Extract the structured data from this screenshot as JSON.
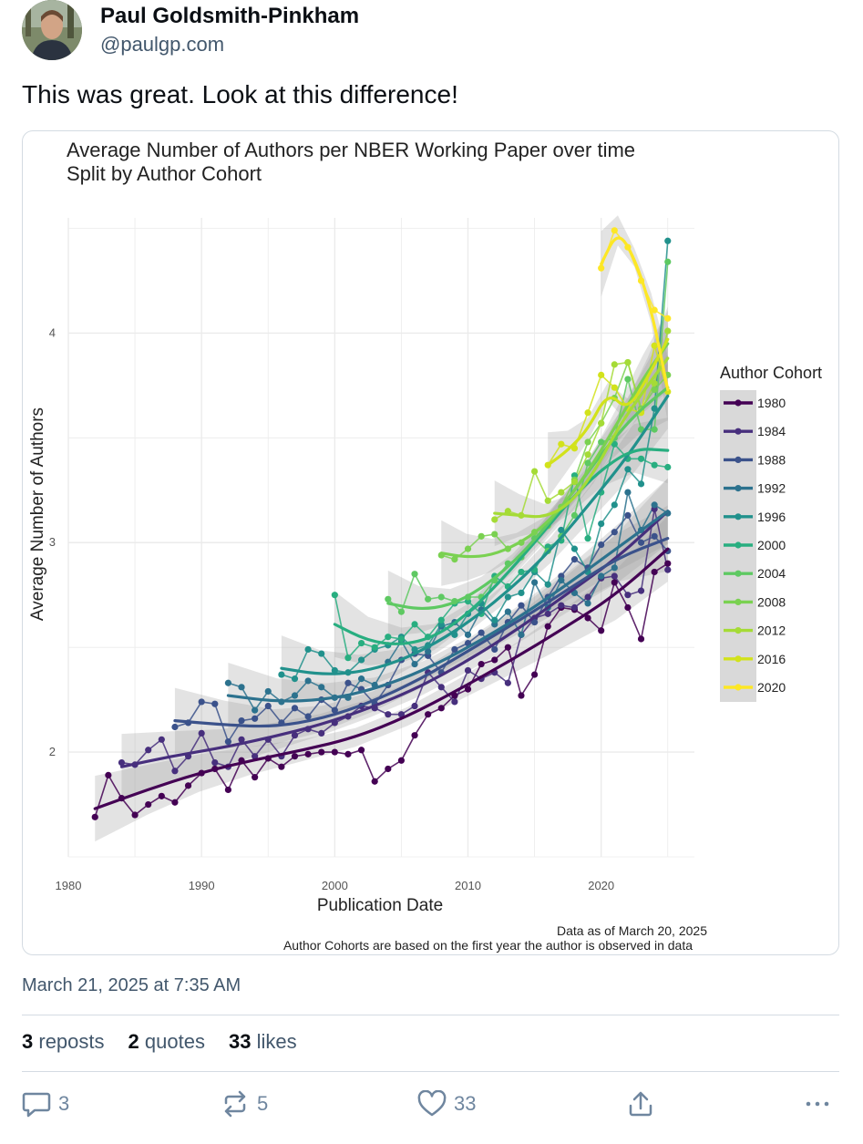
{
  "author": {
    "name": "Paul Goldsmith-Pinkham",
    "handle": "@paulgp.com"
  },
  "post": {
    "text": "This was great. Look at this difference!",
    "timestamp": "March 21, 2025 at 7:35 AM"
  },
  "stats": {
    "reposts_count": "3",
    "reposts_label": "reposts",
    "quotes_count": "2",
    "quotes_label": "quotes",
    "likes_count": "33",
    "likes_label": "likes"
  },
  "actions": {
    "reply_count": "3",
    "repost_count": "5",
    "like_count": "33",
    "share_icon": "share-icon",
    "more_icon": "more-icon"
  },
  "colors": {
    "text_primary": "#0b0f14",
    "text_secondary": "#42576c",
    "icon": "#6f869f",
    "border": "#d4dbe2"
  },
  "chart_data": {
    "type": "line",
    "title": "Average Number of Authors per NBER Working Paper over time",
    "subtitle": "Split by Author Cohort",
    "xlabel": "Publication Date",
    "ylabel": "Average Number of Authors",
    "xlim": [
      1980,
      2027
    ],
    "ylim": [
      1.5,
      4.55
    ],
    "x_ticks": [
      "1980",
      "1990",
      "2000",
      "2010",
      "2020"
    ],
    "y_ticks": [
      "2",
      "3",
      "4"
    ],
    "legend_title": "Author Cohort",
    "legend_position": "right",
    "grid": true,
    "caption_line1": "Data as of March 20, 2025",
    "caption_line2": "Author Cohorts are based on the first year the author is observed in data",
    "series": [
      {
        "name": "1980",
        "color": "#440154",
        "x": [
          1982,
          1983,
          1984,
          1985,
          1986,
          1987,
          1988,
          1989,
          1990,
          1991,
          1992,
          1993,
          1994,
          1995,
          1996,
          1997,
          1998,
          1999,
          2000,
          2001,
          2002,
          2003,
          2004,
          2005,
          2006,
          2007,
          2008,
          2009,
          2010,
          2011,
          2012,
          2013,
          2014,
          2015,
          2016,
          2017,
          2018,
          2019,
          2020,
          2021,
          2022,
          2023,
          2024,
          2025
        ],
        "y": [
          1.69,
          1.89,
          1.78,
          1.7,
          1.75,
          1.79,
          1.76,
          1.84,
          1.9,
          1.92,
          1.82,
          1.96,
          1.88,
          1.97,
          1.93,
          1.98,
          1.99,
          2.0,
          2.0,
          1.99,
          2.01,
          1.86,
          1.92,
          1.96,
          2.08,
          2.18,
          2.21,
          2.27,
          2.3,
          2.42,
          2.44,
          2.5,
          2.27,
          2.37,
          2.6,
          2.69,
          2.68,
          2.64,
          2.58,
          2.81,
          2.69,
          2.54,
          2.86,
          2.9
        ],
        "smooth": [
          1.73,
          1.82,
          1.9,
          1.96,
          2.01,
          2.07,
          2.17,
          2.3,
          2.44,
          2.59,
          2.75,
          2.97
        ]
      },
      {
        "name": "1984",
        "color": "#472f7d",
        "x": [
          1984,
          1985,
          1986,
          1987,
          1988,
          1989,
          1990,
          1991,
          1992,
          1993,
          1994,
          1995,
          1996,
          1997,
          1998,
          1999,
          2000,
          2001,
          2002,
          2003,
          2004,
          2005,
          2006,
          2007,
          2008,
          2009,
          2010,
          2011,
          2012,
          2013,
          2014,
          2015,
          2016,
          2017,
          2018,
          2019,
          2020,
          2021,
          2022,
          2023,
          2024,
          2025
        ],
        "y": [
          1.95,
          1.94,
          2.01,
          2.06,
          1.91,
          1.98,
          2.09,
          1.95,
          1.93,
          2.06,
          1.98,
          2.06,
          1.98,
          2.08,
          2.11,
          2.09,
          2.14,
          2.17,
          2.22,
          2.21,
          2.18,
          2.18,
          2.22,
          2.38,
          2.31,
          2.24,
          2.39,
          2.35,
          2.38,
          2.33,
          2.56,
          2.64,
          2.66,
          2.7,
          2.69,
          2.74,
          2.83,
          2.84,
          2.75,
          2.77,
          3.16,
          2.87
        ],
        "smooth": [
          1.93,
          1.98,
          2.02,
          2.07,
          2.13,
          2.21,
          2.31,
          2.44,
          2.59,
          2.76,
          2.93,
          3.15
        ]
      },
      {
        "name": "1988",
        "color": "#3b528b",
        "x": [
          1988,
          1989,
          1990,
          1991,
          1992,
          1993,
          1994,
          1995,
          1996,
          1997,
          1998,
          1999,
          2000,
          2001,
          2002,
          2003,
          2004,
          2005,
          2006,
          2007,
          2008,
          2009,
          2010,
          2011,
          2012,
          2013,
          2014,
          2015,
          2016,
          2017,
          2018,
          2019,
          2020,
          2021,
          2022,
          2023,
          2024,
          2025
        ],
        "y": [
          2.12,
          2.14,
          2.24,
          2.23,
          2.05,
          2.15,
          2.16,
          2.22,
          2.14,
          2.21,
          2.17,
          2.25,
          2.2,
          2.33,
          2.3,
          2.23,
          2.32,
          2.44,
          2.47,
          2.46,
          2.38,
          2.49,
          2.52,
          2.57,
          2.49,
          2.62,
          2.7,
          2.62,
          2.74,
          2.84,
          2.92,
          2.88,
          2.99,
          3.05,
          3.13,
          3.0,
          3.03,
          2.96
        ],
        "smooth": [
          2.15,
          2.13,
          2.12,
          2.16,
          2.24,
          2.35,
          2.49,
          2.63,
          2.78,
          2.93,
          3.02
        ]
      },
      {
        "name": "1992",
        "color": "#2c728e",
        "x": [
          1992,
          1993,
          1994,
          1995,
          1996,
          1997,
          1998,
          1999,
          2000,
          2001,
          2002,
          2003,
          2004,
          2005,
          2006,
          2007,
          2008,
          2009,
          2010,
          2011,
          2012,
          2013,
          2014,
          2015,
          2016,
          2017,
          2018,
          2019,
          2020,
          2021,
          2022,
          2023,
          2024,
          2025
        ],
        "y": [
          2.33,
          2.31,
          2.2,
          2.29,
          2.24,
          2.27,
          2.34,
          2.31,
          2.26,
          2.26,
          2.35,
          2.32,
          2.43,
          2.53,
          2.42,
          2.48,
          2.6,
          2.62,
          2.56,
          2.68,
          2.61,
          2.67,
          2.56,
          2.81,
          2.69,
          2.82,
          2.76,
          2.71,
          2.84,
          2.88,
          3.24,
          3.06,
          3.18,
          3.14
        ],
        "smooth": [
          2.27,
          2.24,
          2.25,
          2.3,
          2.39,
          2.51,
          2.65,
          2.81,
          2.98,
          3.15
        ]
      },
      {
        "name": "1996",
        "color": "#21918c",
        "x": [
          1996,
          1997,
          1998,
          1999,
          2000,
          2001,
          2002,
          2003,
          2004,
          2005,
          2006,
          2007,
          2008,
          2009,
          2010,
          2011,
          2012,
          2013,
          2014,
          2015,
          2016,
          2017,
          2018,
          2019,
          2020,
          2021,
          2022,
          2023,
          2024,
          2025
        ],
        "y": [
          2.37,
          2.35,
          2.49,
          2.47,
          2.39,
          2.38,
          2.44,
          2.49,
          2.51,
          2.55,
          2.49,
          2.51,
          2.61,
          2.56,
          2.66,
          2.71,
          2.63,
          2.74,
          2.76,
          2.86,
          2.8,
          3.06,
          2.97,
          2.86,
          3.09,
          3.18,
          3.35,
          3.28,
          3.64,
          4.44
        ],
        "smooth": [
          2.4,
          2.37,
          2.38,
          2.43,
          2.52,
          2.64,
          2.79,
          2.97,
          3.19,
          3.42,
          3.7
        ]
      },
      {
        "name": "2000",
        "color": "#28ae80",
        "x": [
          2000,
          2001,
          2002,
          2003,
          2004,
          2005,
          2006,
          2007,
          2008,
          2009,
          2010,
          2011,
          2012,
          2013,
          2014,
          2015,
          2016,
          2017,
          2018,
          2019,
          2020,
          2021,
          2022,
          2023,
          2024,
          2025
        ],
        "y": [
          2.75,
          2.45,
          2.52,
          2.5,
          2.55,
          2.54,
          2.61,
          2.55,
          2.63,
          2.71,
          2.72,
          2.66,
          2.84,
          2.79,
          2.86,
          2.87,
          2.98,
          3.01,
          3.32,
          3.02,
          3.24,
          3.47,
          3.4,
          3.4,
          3.37,
          3.36
        ],
        "smooth": [
          2.61,
          2.53,
          2.51,
          2.55,
          2.66,
          2.82,
          3.0,
          3.19,
          3.35,
          3.45,
          3.44
        ]
      },
      {
        "name": "2004",
        "color": "#5ec962",
        "x": [
          2004,
          2005,
          2006,
          2007,
          2008,
          2009,
          2010,
          2011,
          2012,
          2013,
          2014,
          2015,
          2016,
          2017,
          2018,
          2019,
          2020,
          2021,
          2022,
          2023,
          2024,
          2025
        ],
        "y": [
          2.73,
          2.67,
          2.85,
          2.73,
          2.74,
          2.72,
          2.74,
          2.74,
          2.82,
          2.9,
          2.93,
          3.02,
          2.96,
          3.03,
          3.13,
          3.38,
          3.48,
          3.5,
          3.78,
          3.54,
          3.54,
          4.34
        ],
        "smooth": [
          2.71,
          2.68,
          2.7,
          2.78,
          2.9,
          3.06,
          3.25,
          3.45,
          3.62,
          3.74
        ]
      },
      {
        "name": "2008",
        "color": "#7ad151",
        "x": [
          2008,
          2009,
          2010,
          2011,
          2012,
          2013,
          2014,
          2015,
          2016,
          2017,
          2018,
          2019,
          2020,
          2021,
          2022,
          2023,
          2024,
          2025
        ],
        "y": [
          2.94,
          2.92,
          2.97,
          3.03,
          3.04,
          2.97,
          3.0,
          3.05,
          3.08,
          3.17,
          3.3,
          3.48,
          3.57,
          3.69,
          3.86,
          3.64,
          3.73,
          3.8
        ],
        "smooth": [
          2.95,
          2.93,
          2.94,
          2.99,
          3.07,
          3.2,
          3.37,
          3.57,
          3.78,
          3.95
        ]
      },
      {
        "name": "2012",
        "color": "#a5db36",
        "x": [
          2012,
          2013,
          2014,
          2015,
          2016,
          2017,
          2018,
          2019,
          2020,
          2021,
          2022,
          2023,
          2024,
          2025
        ],
        "y": [
          3.11,
          3.15,
          3.13,
          3.34,
          3.2,
          3.24,
          3.29,
          3.42,
          3.57,
          3.85,
          3.86,
          3.63,
          3.76,
          4.01
        ],
        "smooth": [
          3.14,
          3.13,
          3.12,
          3.18,
          3.33,
          3.55,
          3.72,
          3.88
        ]
      },
      {
        "name": "2016",
        "color": "#d2e21b",
        "x": [
          2016,
          2017,
          2018,
          2019,
          2020,
          2021,
          2022,
          2023,
          2024,
          2025
        ],
        "y": [
          3.37,
          3.47,
          3.45,
          3.62,
          3.8,
          3.74,
          3.64,
          3.62,
          3.94,
          3.72
        ],
        "smooth": [
          3.37,
          3.44,
          3.54,
          3.72,
          3.63,
          3.79,
          3.97
        ]
      },
      {
        "name": "2020",
        "color": "#fde725",
        "x": [
          2020,
          2021,
          2022,
          2023,
          2024,
          2025
        ],
        "y": [
          4.31,
          4.49,
          4.41,
          4.25,
          4.11,
          4.07
        ],
        "smooth": [
          4.33,
          4.49,
          4.36,
          4.12,
          3.73
        ]
      }
    ]
  }
}
